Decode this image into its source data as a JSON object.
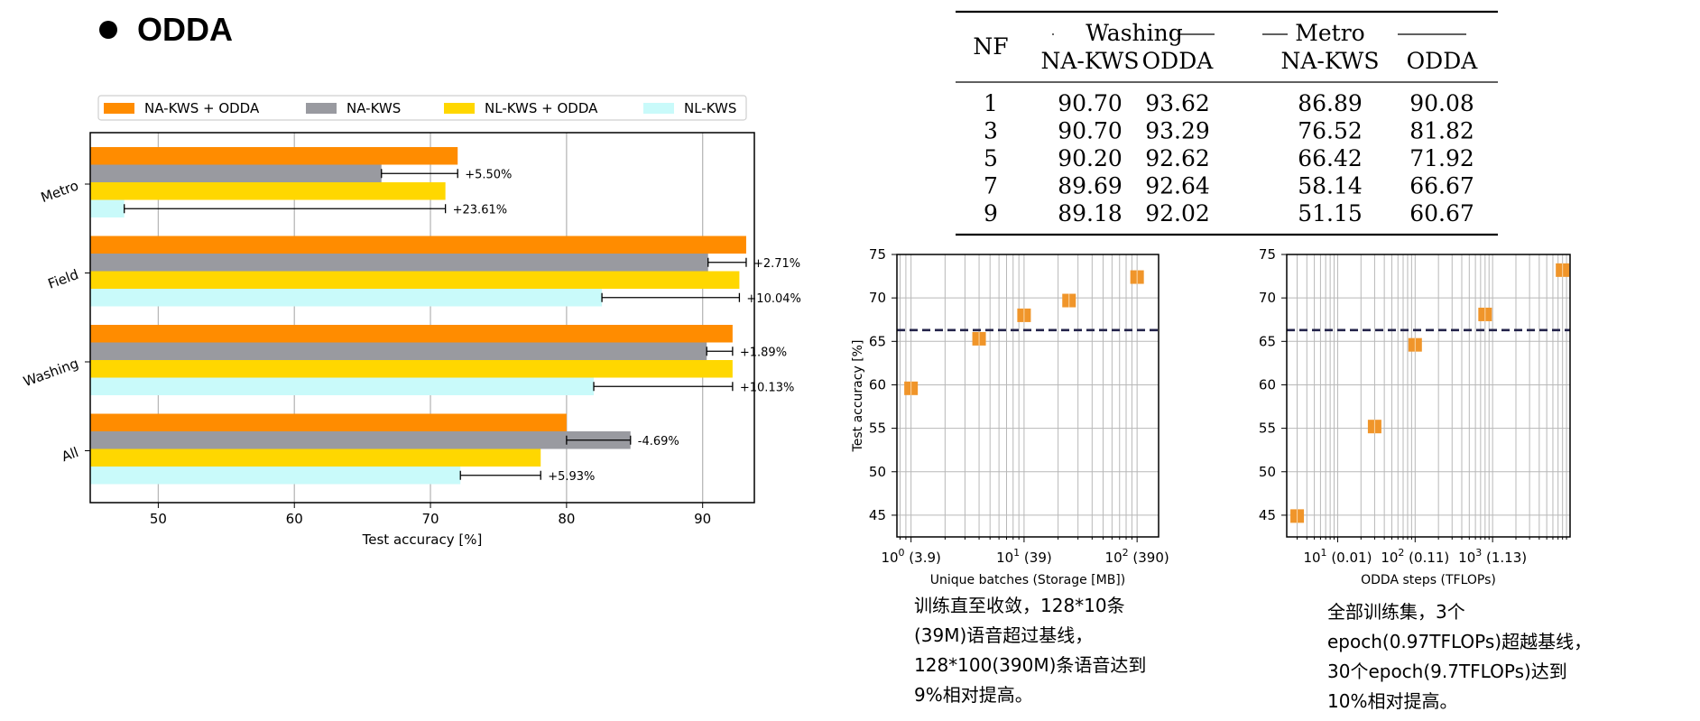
{
  "heading": "ODDA",
  "colors": {
    "orange": "#FF8C00",
    "gray": "#999AA0",
    "yellow": "#FFD700",
    "cyan": "#C9FAFA",
    "grid": "#b8b8b8",
    "scatter_marker": "#F0952A"
  },
  "chart_data": [
    {
      "type": "bar",
      "orientation": "horizontal",
      "categories": [
        "Metro",
        "Field",
        "Washing",
        "All"
      ],
      "series": [
        {
          "name": "NA-KWS + ODDA",
          "values": [
            72.0,
            93.2,
            92.2,
            80.0
          ]
        },
        {
          "name": "NA-KWS",
          "values": [
            66.4,
            90.4,
            90.3,
            84.7
          ]
        },
        {
          "name": "NL-KWS + ODDA",
          "values": [
            71.1,
            92.7,
            92.2,
            78.1
          ]
        },
        {
          "name": "NL-KWS",
          "values": [
            47.5,
            82.6,
            82.0,
            72.2
          ]
        }
      ],
      "annotations": [
        {
          "category": "Metro",
          "series": "NA-KWS",
          "label": "+5.50%"
        },
        {
          "category": "Metro",
          "series": "NL-KWS",
          "label": "+23.61%"
        },
        {
          "category": "Field",
          "series": "NA-KWS",
          "label": "+2.71%"
        },
        {
          "category": "Field",
          "series": "NL-KWS",
          "label": "+10.04%"
        },
        {
          "category": "Washing",
          "series": "NA-KWS",
          "label": "+1.89%"
        },
        {
          "category": "Washing",
          "series": "NL-KWS",
          "label": "+10.13%"
        },
        {
          "category": "All",
          "series": "NA-KWS",
          "label": "-4.69%"
        },
        {
          "category": "All",
          "series": "NL-KWS",
          "label": "+5.93%"
        }
      ],
      "xlabel": "Test accuracy [%]",
      "xlim": [
        45,
        93.8
      ],
      "xticks": [
        50,
        60,
        70,
        80,
        90
      ],
      "grid": "vertical",
      "legend_position": "top"
    },
    {
      "type": "table",
      "group_headers": [
        "Washing",
        "Metro"
      ],
      "columns": [
        "NF",
        "NA-KWS",
        "ODDA",
        "NA-KWS",
        "ODDA"
      ],
      "rows": [
        [
          "1",
          "90.70",
          "93.62",
          "86.89",
          "90.08"
        ],
        [
          "3",
          "90.70",
          "93.29",
          "76.52",
          "81.82"
        ],
        [
          "5",
          "90.20",
          "92.62",
          "66.42",
          "71.92"
        ],
        [
          "7",
          "89.69",
          "92.64",
          "58.14",
          "66.67"
        ],
        [
          "9",
          "89.18",
          "92.02",
          "51.15",
          "60.67"
        ]
      ]
    },
    {
      "type": "scatter",
      "x_scale": "log",
      "x": [
        1,
        4,
        10,
        25,
        100
      ],
      "y": [
        59.6,
        65.3,
        68.0,
        69.7,
        72.4
      ],
      "baseline": 66.3,
      "xlabel": "Unique batches (Storage [MB])",
      "ylabel": "Test accuracy [%]",
      "xticks": [
        {
          "value": 1,
          "base": "10",
          "exp": "0",
          "suffix": "(3.9)"
        },
        {
          "value": 10,
          "base": "10",
          "exp": "1",
          "suffix": "(39)"
        },
        {
          "value": 100,
          "base": "10",
          "exp": "2",
          "suffix": "(390)"
        }
      ],
      "xlim": [
        0.75,
        155
      ],
      "yticks": [
        45,
        50,
        55,
        60,
        65,
        70,
        75
      ],
      "ylim": [
        42.5,
        75
      ]
    },
    {
      "type": "scatter",
      "x_scale": "log",
      "x": [
        3,
        30,
        100,
        800,
        8000
      ],
      "y": [
        44.9,
        55.2,
        64.6,
        68.1,
        73.2
      ],
      "baseline": 66.3,
      "xlabel": "ODDA steps (TFLOPs)",
      "ylabel": "",
      "xticks": [
        {
          "value": 10,
          "base": "10",
          "exp": "1",
          "suffix": "(0.01)"
        },
        {
          "value": 100,
          "base": "10",
          "exp": "2",
          "suffix": "(0.11)"
        },
        {
          "value": 1000,
          "base": "10",
          "exp": "3",
          "suffix": "(1.13)"
        }
      ],
      "xlim": [
        2.2,
        10000
      ],
      "yticks": [
        45,
        50,
        55,
        60,
        65,
        70,
        75
      ],
      "ylim": [
        42.5,
        75
      ]
    }
  ],
  "notes": {
    "left": [
      "训练直至收敛，128*10条",
      "(39M)语音超过基线，",
      "128*100(390M)条语音达到",
      "9%相对提高。"
    ],
    "right": [
      "全部训练集，3个",
      "epoch(0.97TFLOPs)超越基线，",
      "30个epoch(9.7TFLOPs)达到",
      "10%相对提高。"
    ]
  }
}
